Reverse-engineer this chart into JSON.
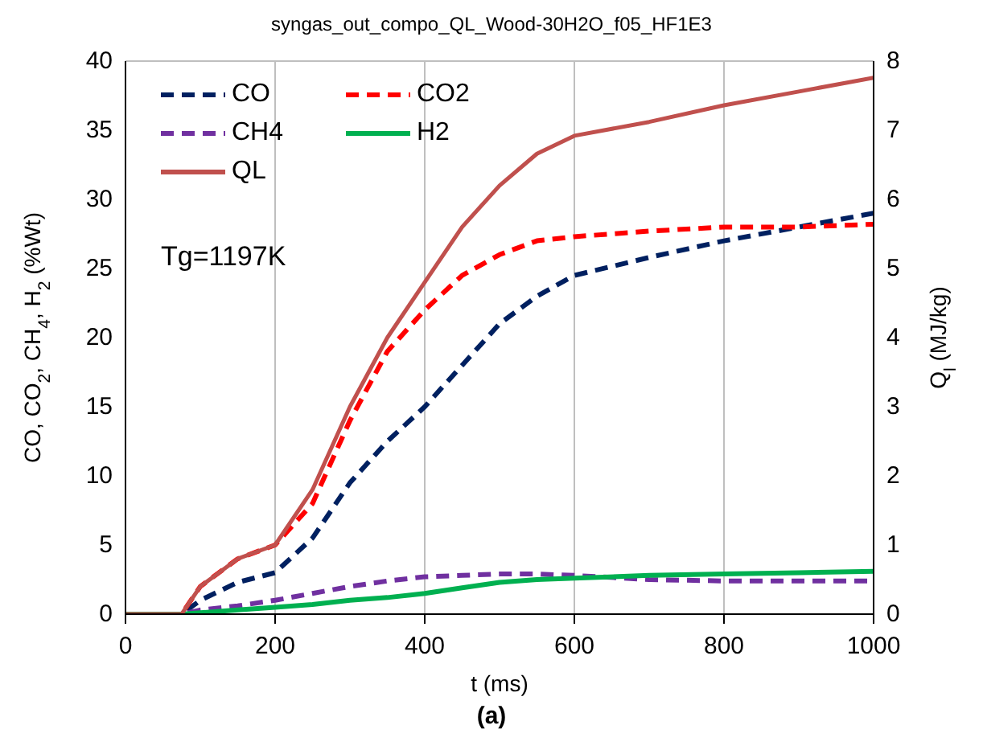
{
  "chart_data": {
    "type": "line",
    "title": "syngas_out_compo_QL_Wood-30H2O_f05_HF1E3",
    "xlabel": "t (ms)",
    "ylabel": "CO, CO$_{2}$, CH$_{4}$, H$_{2}$ (%Wt)",
    "y2label": "Q$_{l}$ (MJ/kg)",
    "annotations": [
      "Tg=1197K",
      "(a)"
    ],
    "x": [
      0,
      75,
      100,
      150,
      200,
      250,
      300,
      350,
      400,
      450,
      500,
      550,
      600,
      700,
      800,
      900,
      1000
    ],
    "series": [
      {
        "name": "CO",
        "color": "#002060",
        "line_style": "dashed",
        "values": [
          0,
          0,
          1,
          2.3,
          3,
          5.5,
          9.5,
          12.5,
          15,
          18,
          21,
          23,
          24.5,
          25.8,
          27,
          28,
          29
        ]
      },
      {
        "name": "CO2",
        "color": "#ff0000",
        "line_style": "dashed",
        "values": [
          0,
          0,
          2,
          4,
          5,
          8,
          14,
          19,
          22,
          24.5,
          26,
          27,
          27.3,
          27.7,
          28,
          28,
          28.2
        ]
      },
      {
        "name": "CH4",
        "color": "#7030a0",
        "line_style": "dashed",
        "values": [
          0,
          0,
          0.3,
          0.6,
          1,
          1.5,
          2,
          2.4,
          2.7,
          2.8,
          2.9,
          2.9,
          2.8,
          2.5,
          2.4,
          2.4,
          2.4
        ]
      },
      {
        "name": "H2",
        "color": "#00b050",
        "line_style": "solid",
        "values": [
          0,
          0,
          0.1,
          0.3,
          0.5,
          0.7,
          1,
          1.2,
          1.5,
          1.9,
          2.3,
          2.5,
          2.6,
          2.8,
          2.9,
          3,
          3.1
        ]
      },
      {
        "name": "QL",
        "color": "#c0504d",
        "line_style": "solid",
        "axis": "y2",
        "values": [
          0,
          0,
          0.4,
          0.8,
          1,
          1.8,
          3,
          4,
          4.8,
          5.6,
          6.2,
          6.66,
          6.92,
          7.12,
          7.36,
          7.56,
          7.76
        ]
      }
    ],
    "xlim": [
      0,
      1000
    ],
    "xticks": [
      0,
      200,
      400,
      600,
      800,
      1000
    ],
    "ylim": [
      0,
      40
    ],
    "yticks": [
      0,
      5,
      10,
      15,
      20,
      25,
      30,
      35,
      40
    ],
    "y2lim": [
      0,
      8
    ],
    "y2ticks": [
      0,
      1,
      2,
      3,
      4,
      5,
      6,
      7,
      8
    ],
    "grid": true,
    "legend": "top left",
    "marker": "none"
  }
}
